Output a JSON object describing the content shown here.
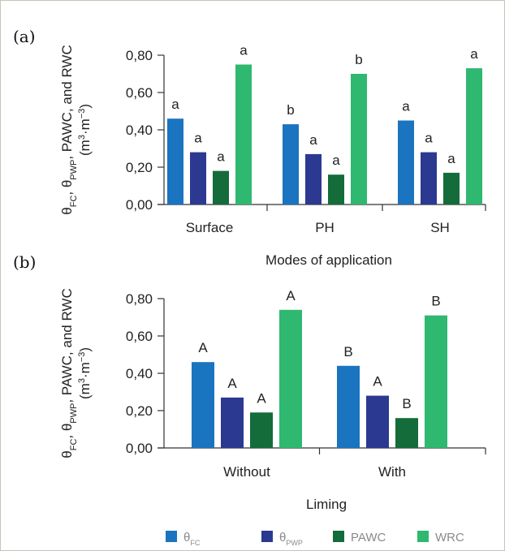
{
  "colors": {
    "theta_fc": "#1a74c0",
    "theta_pwp": "#2b3990",
    "pawc": "#136c3a",
    "wrc": "#2fb870"
  },
  "legend": [
    {
      "key": "theta_fc",
      "label_main": "θ",
      "label_sub": "FC"
    },
    {
      "key": "theta_pwp",
      "label_main": "θ",
      "label_sub": "PWP"
    },
    {
      "key": "pawc",
      "label_main": "PAWC",
      "label_sub": ""
    },
    {
      "key": "wrc",
      "label_main": "WRC",
      "label_sub": ""
    }
  ],
  "chart_data": [
    {
      "type": "bar",
      "panel_label": "(a)",
      "categories": [
        "Surface",
        "PH",
        "SH"
      ],
      "xlabel": "Modes of application",
      "ylabel": {
        "parts": [
          "θ",
          "FC",
          ", θ",
          "PWP",
          ", PAWC, and RWC"
        ],
        "unit_parts": [
          "(m",
          "3",
          "·m",
          "−3",
          ")"
        ]
      },
      "ylim": [
        0,
        0.8
      ],
      "yticks": [
        "0,00",
        "0,20",
        "0,40",
        "0,60",
        "0,80"
      ],
      "series": [
        {
          "key": "theta_fc",
          "values": [
            0.46,
            0.43,
            0.45
          ],
          "labels": [
            "a",
            "b",
            "a"
          ]
        },
        {
          "key": "theta_pwp",
          "values": [
            0.28,
            0.27,
            0.28
          ],
          "labels": [
            "a",
            "a",
            "a"
          ]
        },
        {
          "key": "pawc",
          "values": [
            0.18,
            0.16,
            0.17
          ],
          "labels": [
            "a",
            "a",
            "a"
          ]
        },
        {
          "key": "wrc",
          "values": [
            0.75,
            0.7,
            0.73
          ],
          "labels": [
            "a",
            "b",
            "a"
          ]
        }
      ]
    },
    {
      "type": "bar",
      "panel_label": "(b)",
      "categories": [
        "Without",
        "With"
      ],
      "xlabel": "Liming",
      "ylabel": {
        "parts": [
          "θ",
          "FC",
          ", θ",
          "PWP",
          ", PAWC, and RWC"
        ],
        "unit_parts": [
          "(m",
          "3",
          "·m",
          "−3",
          ")"
        ]
      },
      "ylim": [
        0,
        0.8
      ],
      "yticks": [
        "0,00",
        "0,20",
        "0,40",
        "0,60",
        "0,80"
      ],
      "series": [
        {
          "key": "theta_fc",
          "values": [
            0.46,
            0.44
          ],
          "labels": [
            "A",
            "B"
          ]
        },
        {
          "key": "theta_pwp",
          "values": [
            0.27,
            0.28
          ],
          "labels": [
            "A",
            "A"
          ]
        },
        {
          "key": "pawc",
          "values": [
            0.19,
            0.16
          ],
          "labels": [
            "A",
            "B"
          ]
        },
        {
          "key": "wrc",
          "values": [
            0.74,
            0.71
          ],
          "labels": [
            "A",
            "B"
          ]
        }
      ]
    }
  ]
}
